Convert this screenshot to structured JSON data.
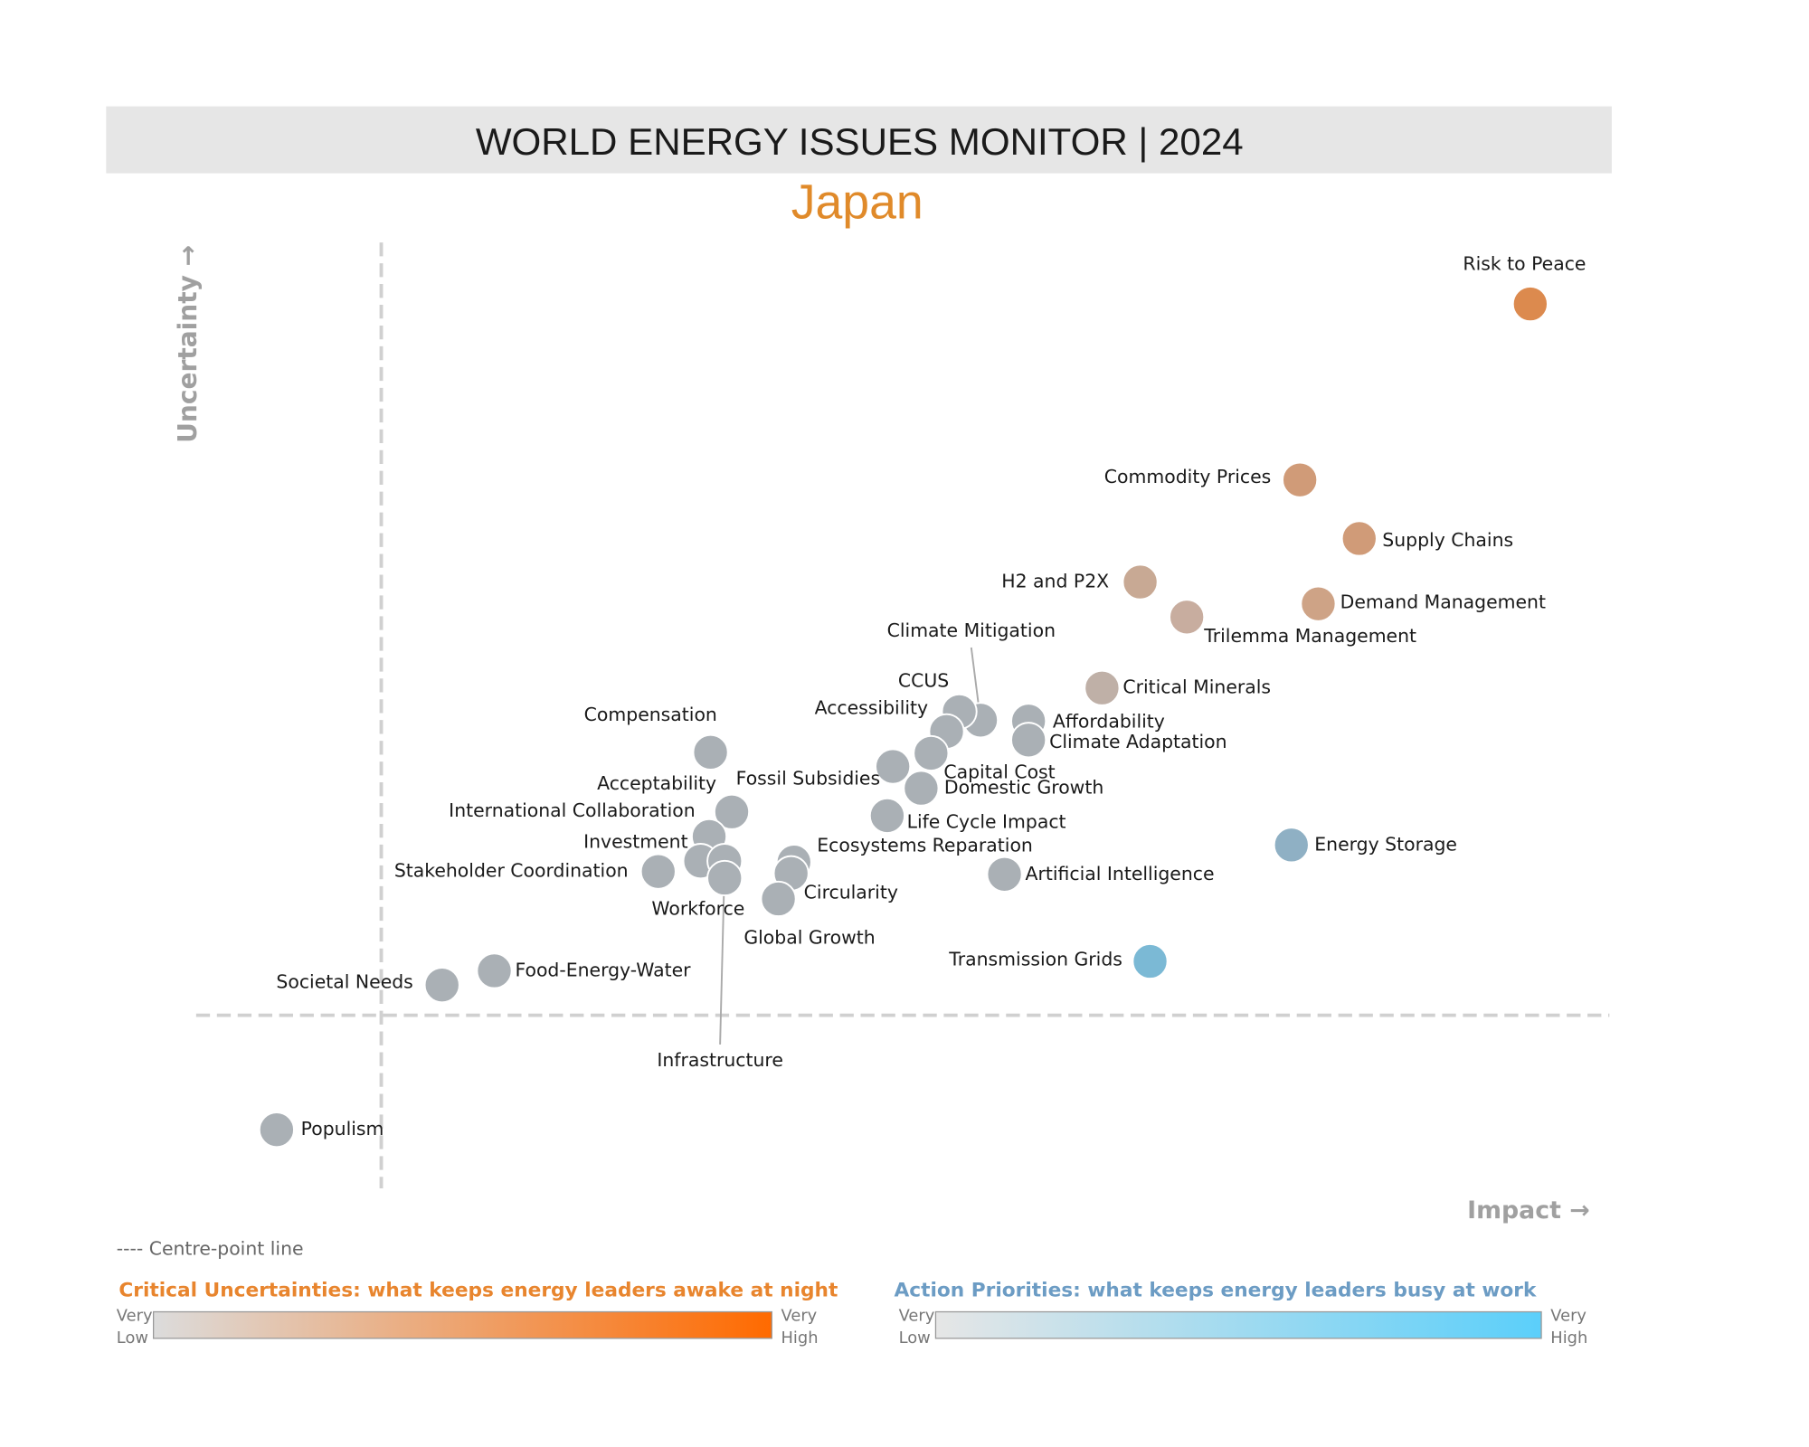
{
  "title": "WORLD ENERGY ISSUES MONITOR | 2024",
  "chart_data": {
    "type": "scatter",
    "subtitle": "Japan",
    "x_label": "Impact →",
    "y_label": "Uncertainty →",
    "xlim": [
      0,
      100
    ],
    "ylim": [
      0,
      100
    ],
    "centre_x": 13.1,
    "centre_y": 18.3,
    "centre_line_label": "---- Centre-point line",
    "points": [
      {
        "name": "Risk to Peace",
        "x": 94.4,
        "y": 93.5,
        "color": "#dc8a4e"
      },
      {
        "name": "Commodity Prices",
        "x": 78.1,
        "y": 74.9,
        "color": "#d09b78"
      },
      {
        "name": "Supply Chains",
        "x": 82.3,
        "y": 68.7,
        "color": "#d09b78"
      },
      {
        "name": "Demand Management",
        "x": 79.4,
        "y": 61.8,
        "color": "#cea386"
      },
      {
        "name": "H2 and P2X",
        "x": 66.8,
        "y": 64.1,
        "color": "#c8a994"
      },
      {
        "name": "Trilemma Management",
        "x": 70.1,
        "y": 60.4,
        "color": "#c8ad9f"
      },
      {
        "name": "Critical Minerals",
        "x": 64.1,
        "y": 52.9,
        "color": "#bfb0a7"
      },
      {
        "name": "Climate Mitigation",
        "x": 55.5,
        "y": 49.5,
        "color": "#aab0b5"
      },
      {
        "name": "CCUS",
        "x": 54.0,
        "y": 50.4,
        "color": "#aab0b5"
      },
      {
        "name": "Accessibility",
        "x": 53.1,
        "y": 48.3,
        "color": "#aab0b5"
      },
      {
        "name": "Affordability",
        "x": 58.9,
        "y": 49.4,
        "color": "#aab0b5"
      },
      {
        "name": "Climate Adaptation",
        "x": 58.9,
        "y": 47.4,
        "color": "#aab0b5"
      },
      {
        "name": "Capital Cost",
        "x": 52.0,
        "y": 46.0,
        "color": "#aab0b5"
      },
      {
        "name": "Fossil Subsidies",
        "x": 49.3,
        "y": 44.6,
        "color": "#aab0b5"
      },
      {
        "name": "Domestic Growth",
        "x": 51.3,
        "y": 42.3,
        "color": "#aab0b5"
      },
      {
        "name": "Compensation",
        "x": 36.4,
        "y": 46.1,
        "color": "#aab0b5"
      },
      {
        "name": "Acceptability",
        "x": 37.9,
        "y": 39.8,
        "color": "#aab0b5"
      },
      {
        "name": "International Collaboration",
        "x": 36.3,
        "y": 37.2,
        "color": "#aab0b5"
      },
      {
        "name": "Investment",
        "x": 35.7,
        "y": 34.6,
        "color": "#aab0b5"
      },
      {
        "name": "Stakeholder Coordination",
        "x": 32.7,
        "y": 33.5,
        "color": "#aab0b5"
      },
      {
        "name": "Infrastructure",
        "x": 37.4,
        "y": 34.6,
        "color": "#aab0b5"
      },
      {
        "name": "Workforce",
        "x": 37.4,
        "y": 32.8,
        "color": "#aab0b5"
      },
      {
        "name": "Life Cycle Impact",
        "x": 48.9,
        "y": 39.4,
        "color": "#aab0b5"
      },
      {
        "name": "Ecosystems Reparation",
        "x": 42.3,
        "y": 34.5,
        "color": "#aab0b5"
      },
      {
        "name": "Circularity",
        "x": 42.1,
        "y": 33.3,
        "color": "#aab0b5"
      },
      {
        "name": "Global Growth",
        "x": 41.2,
        "y": 30.6,
        "color": "#aab0b5"
      },
      {
        "name": "Artificial Intelligence",
        "x": 57.2,
        "y": 33.2,
        "color": "#aab0b5"
      },
      {
        "name": "Energy Storage",
        "x": 77.5,
        "y": 36.3,
        "color": "#8fb0c4"
      },
      {
        "name": "Transmission Grids",
        "x": 67.5,
        "y": 24.0,
        "color": "#7bb9d5"
      },
      {
        "name": "Food-Energy-Water",
        "x": 21.1,
        "y": 23.0,
        "color": "#aab0b5"
      },
      {
        "name": "Societal Needs",
        "x": 17.4,
        "y": 21.5,
        "color": "#aab0b5"
      },
      {
        "name": "Populism",
        "x": 5.7,
        "y": 6.2,
        "color": "#aab0b5"
      }
    ]
  },
  "legend": {
    "uncertainties": {
      "title": "Critical Uncertainties: what keeps energy leaders awake at night",
      "color": "#e8852e",
      "low": [
        "Very",
        "Low"
      ],
      "high": [
        "Very",
        "High"
      ],
      "gradient": [
        "#dcdcdc",
        "#ff6a00"
      ]
    },
    "priorities": {
      "title": "Action Priorities: what keeps energy leaders busy at work",
      "color": "#6c9cc4",
      "low": [
        "Very",
        "Low"
      ],
      "high": [
        "Very",
        "High"
      ],
      "gradient": [
        "#e6e6e6",
        "#5bcffa"
      ]
    }
  }
}
